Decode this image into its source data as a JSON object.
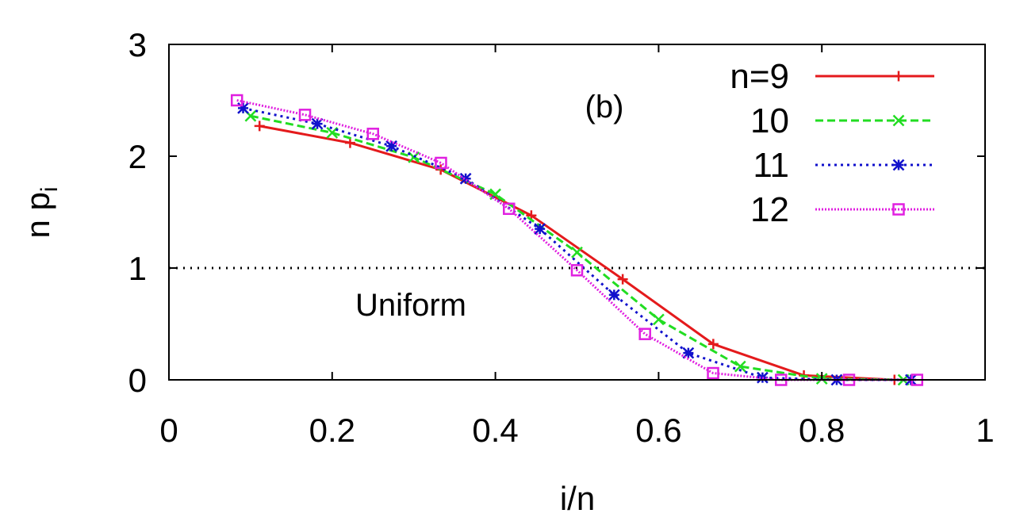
{
  "chart_data": {
    "type": "line",
    "panel_label": "(b)",
    "xlabel": "i/n",
    "ylabel_main": "n p",
    "ylabel_sub": "i",
    "xlim": [
      0,
      1
    ],
    "ylim": [
      0,
      3
    ],
    "xticks": [
      0,
      0.2,
      0.4,
      0.6,
      0.8,
      1
    ],
    "xtick_labels": [
      "0",
      "0.2",
      "0.4",
      "0.6",
      "0.8",
      "1"
    ],
    "yticks": [
      0,
      1,
      2,
      3
    ],
    "ytick_labels": [
      "0",
      "1",
      "2",
      "3"
    ],
    "legend_position": "top-right",
    "reference_line": {
      "y": 1,
      "label": "Uniform",
      "color": "#000000",
      "style": "dotted"
    },
    "series": [
      {
        "name": "n=9",
        "color": "#e41a1c",
        "dash": "solid",
        "marker": "plus",
        "x": [
          0.111,
          0.222,
          0.333,
          0.444,
          0.556,
          0.667,
          0.778,
          0.889
        ],
        "y": [
          2.27,
          2.12,
          1.88,
          1.47,
          0.9,
          0.32,
          0.04,
          0.0
        ]
      },
      {
        "name": "10",
        "color": "#22dd22",
        "dash": "dashed",
        "marker": "cross",
        "x": [
          0.1,
          0.2,
          0.3,
          0.4,
          0.5,
          0.6,
          0.7,
          0.8,
          0.9
        ],
        "y": [
          2.36,
          2.21,
          1.99,
          1.66,
          1.14,
          0.54,
          0.12,
          0.01,
          0.0
        ]
      },
      {
        "name": "11",
        "color": "#1111cc",
        "dash": "dotted",
        "marker": "star",
        "x": [
          0.0909,
          0.1818,
          0.2727,
          0.3636,
          0.4545,
          0.5455,
          0.6364,
          0.7273,
          0.8182,
          0.9091
        ],
        "y": [
          2.43,
          2.29,
          2.09,
          1.8,
          1.35,
          0.76,
          0.24,
          0.02,
          0.0,
          0.0
        ]
      },
      {
        "name": "12",
        "color": "#e020e0",
        "dash": "densedot",
        "marker": "square",
        "x": [
          0.0833,
          0.1667,
          0.25,
          0.3333,
          0.4167,
          0.5,
          0.5833,
          0.6667,
          0.75,
          0.8333,
          0.9167
        ],
        "y": [
          2.5,
          2.37,
          2.2,
          1.94,
          1.53,
          0.98,
          0.41,
          0.06,
          0.0,
          0.0,
          0.0
        ]
      }
    ]
  }
}
